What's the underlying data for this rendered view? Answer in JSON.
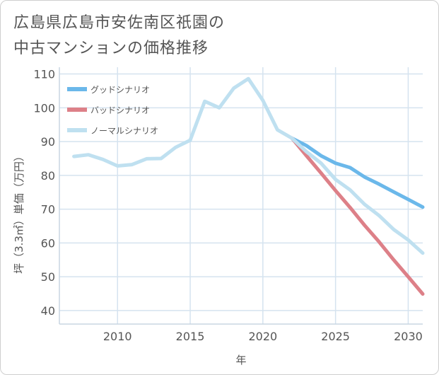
{
  "title_lines": [
    "広島県広島市安佐南区祇園の",
    "中古マンションの価格推移"
  ],
  "chart_data": {
    "type": "line",
    "xlabel": "年",
    "ylabel": "坪（3.3㎡）単価（万円）",
    "xlim": [
      2006,
      2031
    ],
    "ylim": [
      36,
      112
    ],
    "xticks": [
      2010,
      2015,
      2020,
      2025,
      2030
    ],
    "yticks": [
      40,
      50,
      60,
      70,
      80,
      90,
      100,
      110
    ],
    "grid": true,
    "legend_position": "top-left",
    "series": [
      {
        "name": "グッドシナリオ",
        "color": "#6bb8ea",
        "x": [
          2022,
          2023,
          2024,
          2025,
          2026,
          2027,
          2028,
          2029,
          2030,
          2031
        ],
        "y": [
          91.0,
          88.8,
          85.8,
          83.6,
          82.3,
          79.5,
          77.4,
          75.1,
          72.9,
          70.6
        ]
      },
      {
        "name": "バッドシナリオ",
        "color": "#dd8088",
        "x": [
          2022,
          2023,
          2024,
          2025,
          2026,
          2027,
          2028,
          2029,
          2030,
          2031
        ],
        "y": [
          91.0,
          85.8,
          80.7,
          75.5,
          70.5,
          65.2,
          60.3,
          55.0,
          50.0,
          44.9
        ]
      },
      {
        "name": "ノーマルシナリオ",
        "color": "#bfe0f0",
        "x": [
          2007,
          2008,
          2009,
          2010,
          2011,
          2012,
          2013,
          2014,
          2015,
          2016,
          2017,
          2018,
          2019,
          2020,
          2021,
          2022,
          2023,
          2024,
          2025,
          2026,
          2027,
          2028,
          2029,
          2030,
          2031
        ],
        "y": [
          85.6,
          86.1,
          84.7,
          82.8,
          83.2,
          84.9,
          85.0,
          88.3,
          90.4,
          101.9,
          100.0,
          105.8,
          108.6,
          102.2,
          93.5,
          91.0,
          87.0,
          83.6,
          78.8,
          75.7,
          71.4,
          68.1,
          64.0,
          60.9,
          57.0
        ]
      }
    ]
  }
}
